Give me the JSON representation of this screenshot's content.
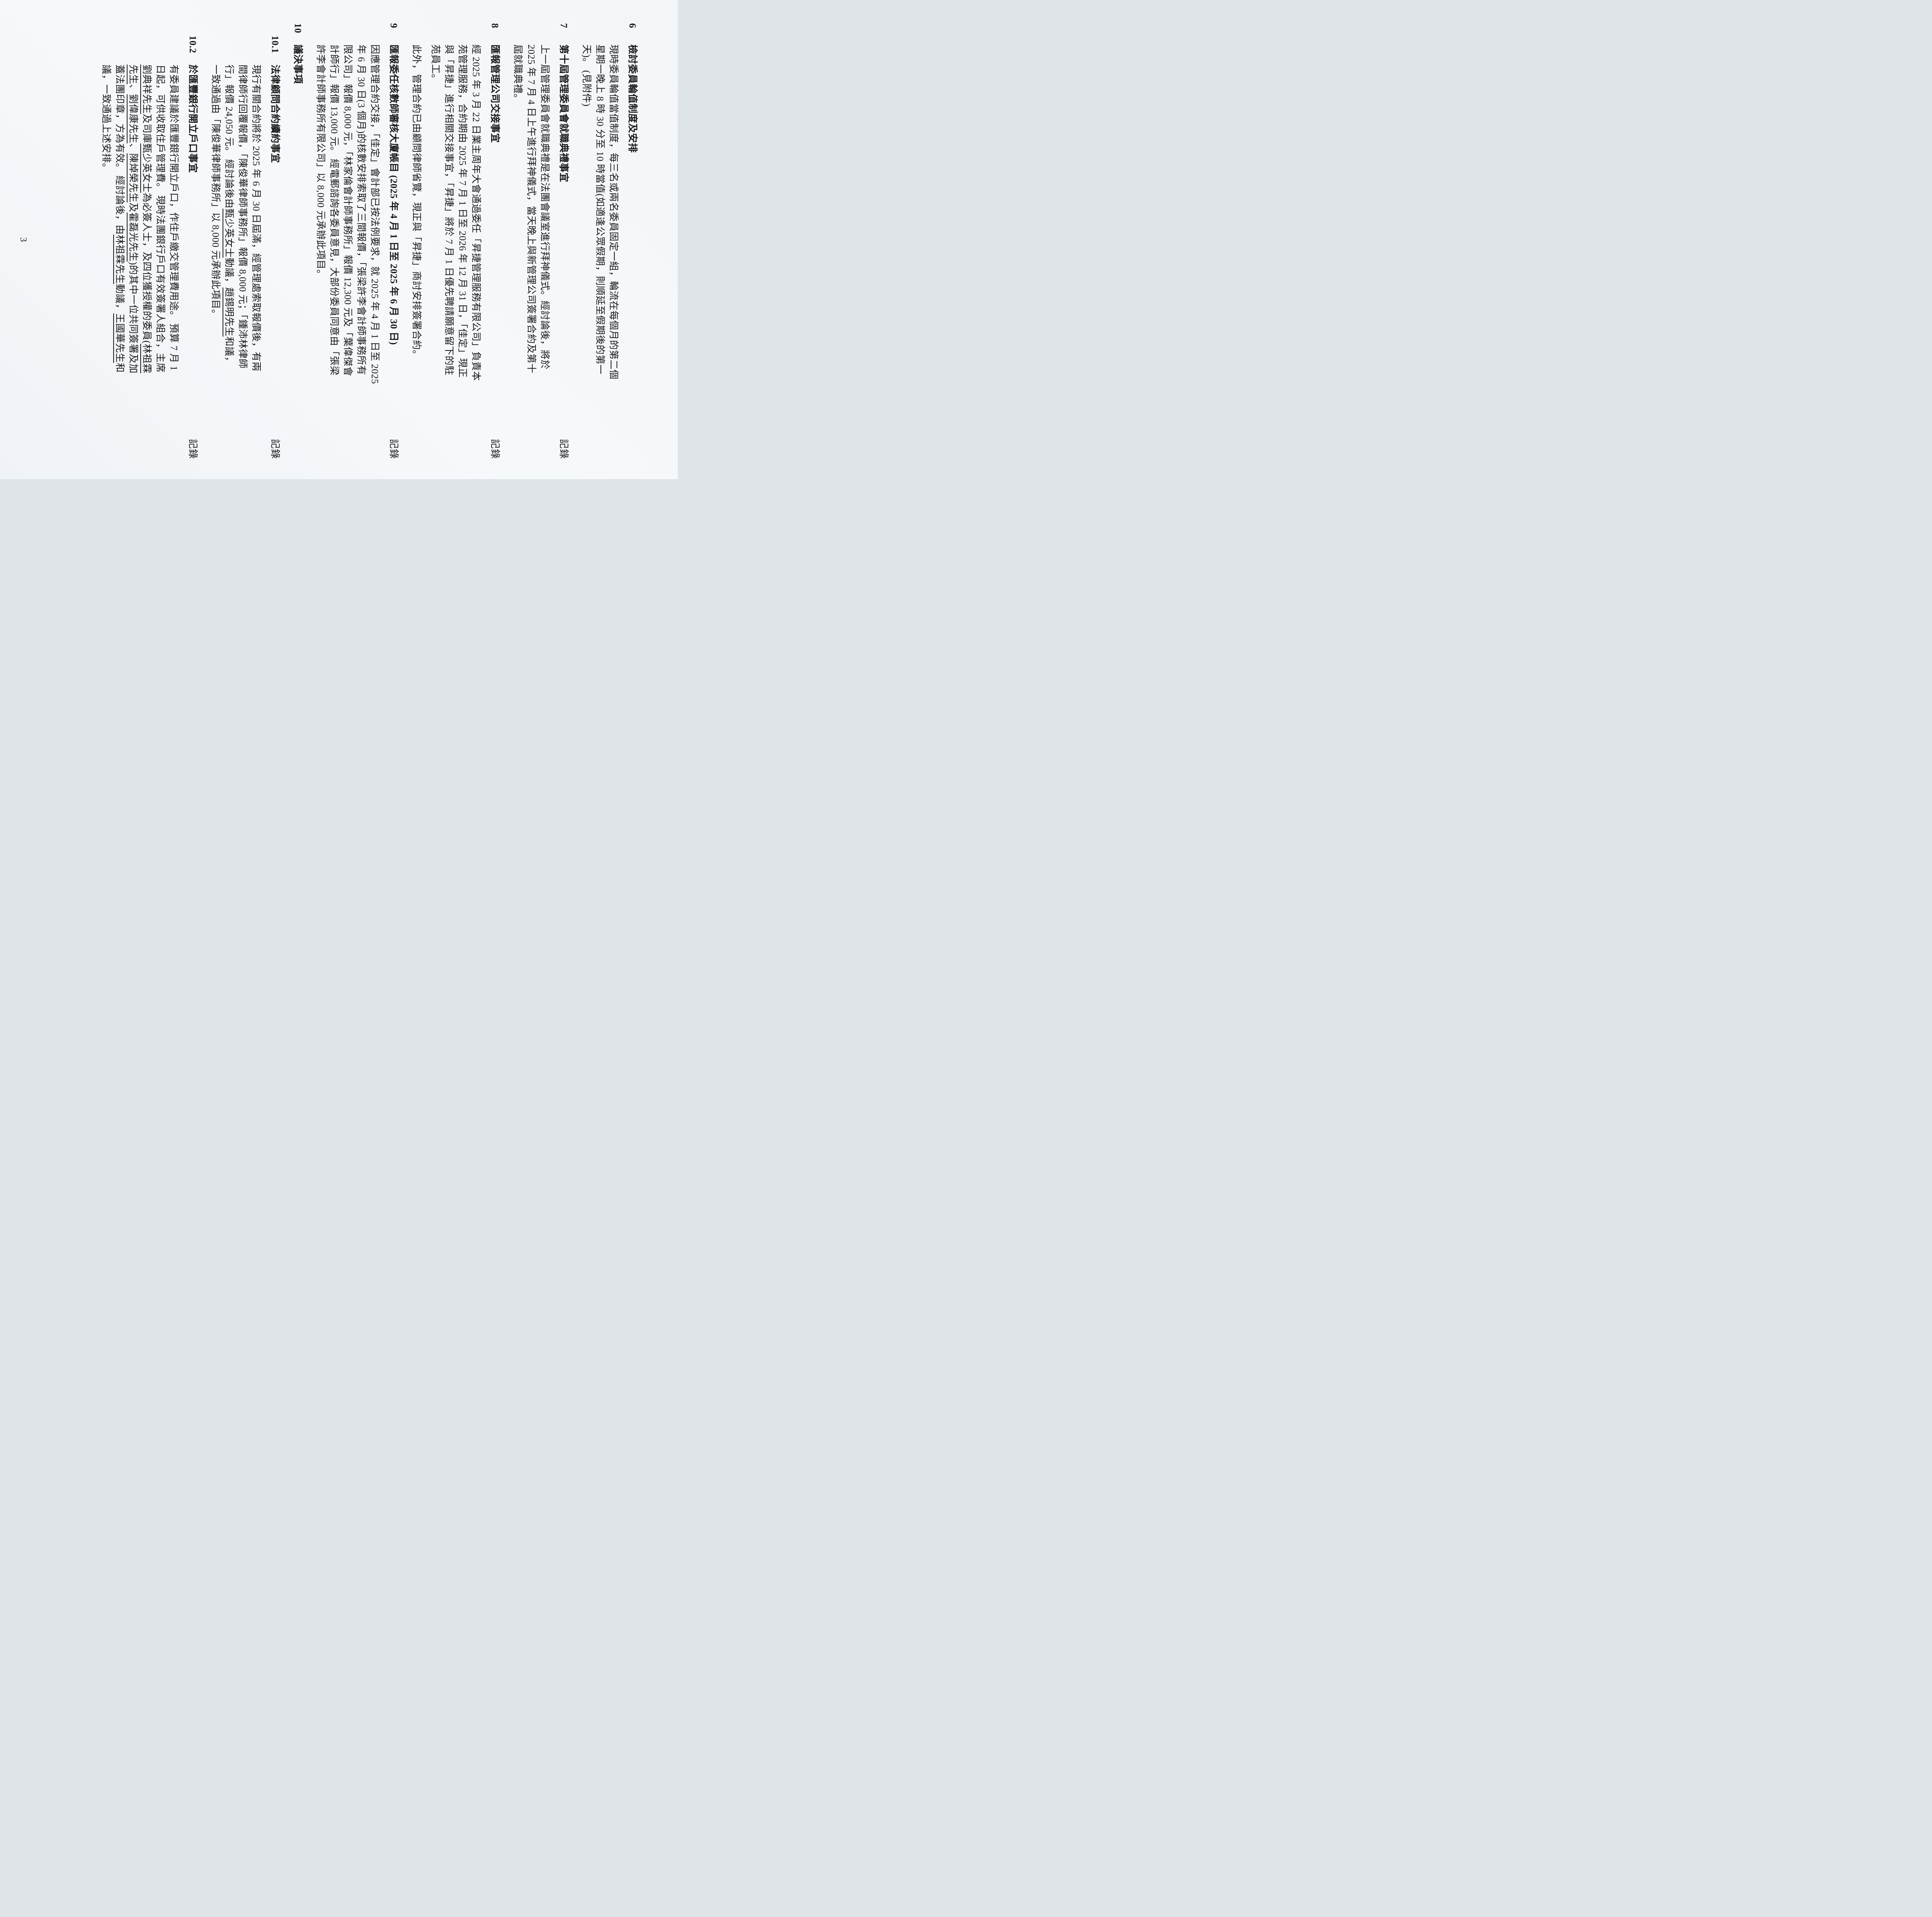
{
  "doc": {
    "page_number": "3",
    "record_label": "記錄",
    "sections": [
      {
        "num": "6",
        "title": "檢討委員輪值制度及安排",
        "record": false,
        "paragraphs": [
          [
            "現時委員輪值當值制度，每三名或兩名委員固定一組，輪流在每個月的第二個",
            "星期一晚上 8 時 30 分至 10 時當值(如適逢公眾假期，則順延至假期後的第一",
            "天)。 (見附件)"
          ]
        ]
      },
      {
        "num": "7",
        "title": "第十屆管理委員會就職典禮事宜",
        "record": true,
        "paragraphs": [
          [
            "上一屆管理委員會就職典禮是在法團會議室進行拜神儀式。經討論後，將於",
            "2025 年 7 月 4 日上午進行拜神儀式，當天晚上與新管理公司簽署合約及第十",
            "屆就職典禮。"
          ]
        ]
      },
      {
        "num": "8",
        "title": "匯報管理公司交接事宜",
        "record": true,
        "paragraphs": [
          [
            "經 2025 年 3 月 22 日業主周年大會通過委任「昇捷管理服務有限公司」負責本",
            "苑管理服務，合約期由 2025 年 7 月 1 日至 2026 年 12 月 31 日，「佳定」現正",
            "與「昇捷」進行相關交接事宜，「昇捷」將於 7 月 1 日優先聘請願意留下的駐",
            "苑員工。"
          ],
          [
            "此外，管理合約已由顧問律師省覽，現正與「昇捷」商討安排簽署合約。"
          ]
        ]
      },
      {
        "num": "9",
        "title": "匯報委任核數師審核大廈帳目 (2025 年 4 月 1 日至 2025 年 6 月 30 日)",
        "record": true,
        "paragraphs": [
          [
            "因應管理合約交接，「佳定」會計部已按法例要求，就 2025 年 4 月 1 日至 2025",
            "年 6 月 30 日(3 個月)的核數安排索取了三間報價，「張梁許李會計師事務所有",
            "限公司」報價 8,000 元，「林家倫會計師事務所」報價 12,300 元及「葉偉傑會",
            "計師行」報價 13,000 元。 經電郵諮詢各委員意見，大部份委員同意由「張梁",
            "許李會計師事務所有限公司」以 8,000 元承辦此項目。"
          ]
        ]
      },
      {
        "num": "10",
        "title": "議決事項",
        "record": false,
        "paragraphs": [],
        "subsections": [
          {
            "num": "10.1",
            "title": "法律顧問合約續約事宜",
            "record": true,
            "paragraphs": [
              [
                "現行有關合約將於 2025 年 6 月 30 日屆滿，經管理處索取報價後，有兩",
                "間律師行回覆報價，「陳俊華律師事務所」報價 8,000 元；「鍾沛林律師",
                [
                  {
                    "t": "行」報價 24,050 元。 經討論後由"
                  },
                  {
                    "t": "甄少英女士",
                    "u": true
                  },
                  {
                    "t": "動議，"
                  },
                  {
                    "t": "趙錫明先生",
                    "u": true
                  },
                  {
                    "t": "和議，"
                  }
                ],
                "一致通過由「陳俊華律師事務所」以 8,000 元承辦此項目。"
              ]
            ]
          },
          {
            "num": "10.2",
            "title": "於匯豐銀行開立戶口事宜",
            "record": true,
            "paragraphs": [
              [
                "有委員建議於匯豐銀行開立戶口，作住戶繳交管理費用途。 預算 7 月 1",
                "日起，可供收取住戶管理費。 現時法團銀行戶口有效簽署人組合，主席",
                [
                  {
                    "t": "劉典祥先生",
                    "u": true
                  },
                  {
                    "t": "及司庫"
                  },
                  {
                    "t": "甄少英女士",
                    "u": true
                  },
                  {
                    "t": "為必簽人士，及四位獲授權的委員("
                  },
                  {
                    "t": "林祖霖",
                    "u": true
                  }
                ],
                [
                  {
                    "t": "先生",
                    "u": true
                  },
                  {
                    "t": "、"
                  },
                  {
                    "t": "劉偉康先生",
                    "u": true
                  },
                  {
                    "t": "、"
                  },
                  {
                    "t": "陳焯榮先生",
                    "u": true
                  },
                  {
                    "t": "及"
                  },
                  {
                    "t": "霍磊光先生",
                    "u": true
                  },
                  {
                    "t": ")的其中一位共同簽署及加"
                  }
                ],
                [
                  {
                    "t": "蓋法團印章，方為有效。 經討論後，由"
                  },
                  {
                    "t": "林祖霖先生",
                    "u": true
                  },
                  {
                    "t": "動議，"
                  },
                  {
                    "t": "王國華先生",
                    "u": true
                  },
                  {
                    "t": "和"
                  }
                ],
                "議，一致通過上述安排。"
              ]
            ]
          }
        ]
      }
    ]
  }
}
